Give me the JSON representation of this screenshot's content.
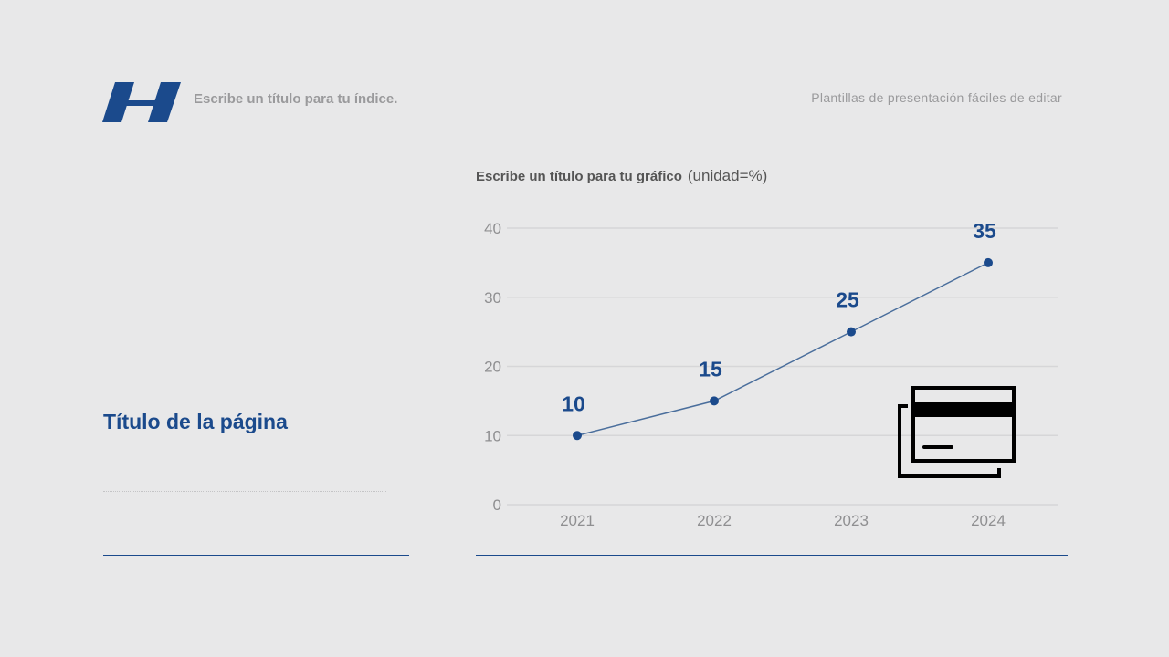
{
  "header": {
    "index_title": "Escribe un título para tu índice.",
    "tagline": "Plantillas de presentación fáciles de editar"
  },
  "page": {
    "title": "Título de la página"
  },
  "colors": {
    "accent": "#1b4a8c",
    "background": "#e8e8e9",
    "grid": "#d6d6d8",
    "axis_text": "#8f8f91"
  },
  "icons": {
    "logo": "slanted-parallelogram-logo",
    "chart_decoration": "credit-card-icon"
  },
  "chart_data": {
    "type": "line",
    "title": "Escribe un título para tu gráfico",
    "unit_label": "(unidad=%)",
    "categories": [
      "2021",
      "2022",
      "2023",
      "2024"
    ],
    "values": [
      10,
      15,
      25,
      35
    ],
    "data_labels": [
      "10",
      "15",
      "25",
      "35"
    ],
    "ylim": [
      0,
      40
    ],
    "yticks": [
      "0",
      "10",
      "20",
      "30",
      "40"
    ],
    "grid": true,
    "legend": "none",
    "color": "#1b4a8c"
  }
}
